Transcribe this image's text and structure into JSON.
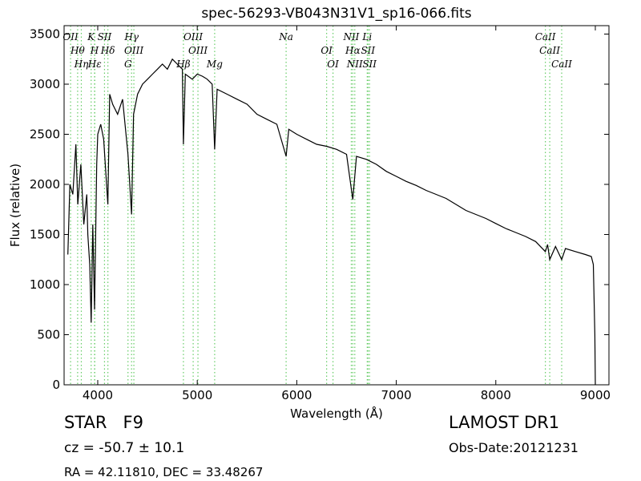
{
  "chart_data": {
    "type": "line",
    "title": "spec-56293-VB043N31V1_sp16-066.fits",
    "x_label": "Wavelength (Å)",
    "y_label": "Flux (relative)",
    "color": "#000000",
    "line_color": "#66cc66",
    "xlim": [
      3662,
      9137
    ],
    "ylim": [
      0,
      3584
    ],
    "xticks": [
      4000,
      5000,
      6000,
      7000,
      8000,
      9000
    ],
    "yticks": [
      0,
      500,
      1000,
      1500,
      2000,
      2500,
      3000,
      3500
    ],
    "x": [
      3700,
      3720,
      3750,
      3780,
      3800,
      3830,
      3860,
      3890,
      3900,
      3920,
      3934,
      3950,
      3968,
      3990,
      4000,
      4030,
      4060,
      4102,
      4120,
      4150,
      4200,
      4250,
      4304,
      4340,
      4360,
      4400,
      4450,
      4500,
      4550,
      4600,
      4650,
      4700,
      4750,
      4800,
      4850,
      4861,
      4880,
      4950,
      5000,
      5050,
      5100,
      5150,
      5175,
      5200,
      5300,
      5400,
      5500,
      5600,
      5700,
      5800,
      5893,
      5920,
      6000,
      6100,
      6200,
      6300,
      6400,
      6500,
      6563,
      6600,
      6700,
      6800,
      6900,
      7000,
      7100,
      7200,
      7300,
      7400,
      7500,
      7600,
      7700,
      7800,
      7900,
      8000,
      8100,
      8200,
      8300,
      8400,
      8498,
      8520,
      8542,
      8600,
      8662,
      8700,
      8800,
      8900,
      8960,
      8980,
      8995,
      9000
    ],
    "values": [
      1300,
      2000,
      1900,
      2400,
      1800,
      2200,
      1600,
      1900,
      1500,
      1200,
      620,
      1600,
      750,
      2200,
      2500,
      2600,
      2450,
      1800,
      2900,
      2800,
      2700,
      2850,
      2300,
      1700,
      2700,
      2900,
      3000,
      3050,
      3100,
      3150,
      3200,
      3150,
      3250,
      3200,
      3150,
      2400,
      3100,
      3050,
      3100,
      3080,
      3050,
      3000,
      2350,
      2950,
      2900,
      2850,
      2800,
      2700,
      2650,
      2600,
      2280,
      2550,
      2500,
      2450,
      2400,
      2380,
      2350,
      2300,
      1850,
      2280,
      2250,
      2200,
      2130,
      2080,
      2030,
      1990,
      1940,
      1900,
      1860,
      1800,
      1740,
      1700,
      1660,
      1610,
      1560,
      1520,
      1480,
      1430,
      1330,
      1400,
      1250,
      1380,
      1250,
      1360,
      1330,
      1300,
      1280,
      1200,
      500,
      0
    ],
    "lines": [
      {
        "label": "OII",
        "x": 3727
      },
      {
        "label": "Hθ",
        "x": 3798
      },
      {
        "label": "Hη",
        "x": 3835
      },
      {
        "label": "K",
        "x": 3934
      },
      {
        "label": "H",
        "x": 3968
      },
      {
        "label": "Hε",
        "x": 3970
      },
      {
        "label": "SII",
        "x": 4068
      },
      {
        "label": "Hδ",
        "x": 4102
      },
      {
        "label": "G",
        "x": 4304
      },
      {
        "label": "Hγ",
        "x": 4340
      },
      {
        "label": "OIII",
        "x": 4363
      },
      {
        "label": "Hβ",
        "x": 4861
      },
      {
        "label": "OIII",
        "x": 4959
      },
      {
        "label": "OIII",
        "x": 5007
      },
      {
        "label": "Mg",
        "x": 5175
      },
      {
        "label": "Na",
        "x": 5893
      },
      {
        "label": "OI",
        "x": 6300
      },
      {
        "label": "OI",
        "x": 6364
      },
      {
        "label": "NII",
        "x": 6548
      },
      {
        "label": "Hα",
        "x": 6563
      },
      {
        "label": "NII",
        "x": 6583
      },
      {
        "label": "Li",
        "x": 6708
      },
      {
        "label": "SII",
        "x": 6716
      },
      {
        "label": "SII",
        "x": 6731
      },
      {
        "label": "CaII",
        "x": 8498
      },
      {
        "label": "CaII",
        "x": 8542
      },
      {
        "label": "CaII",
        "x": 8662
      }
    ],
    "info": {
      "star": "STAR   F9",
      "cz": "cz = -50.7 ± 10.1",
      "coords": "RA = 42.11810, DEC = 33.48267",
      "survey": "LAMOST DR1",
      "date": "Obs-Date:20121231"
    }
  }
}
